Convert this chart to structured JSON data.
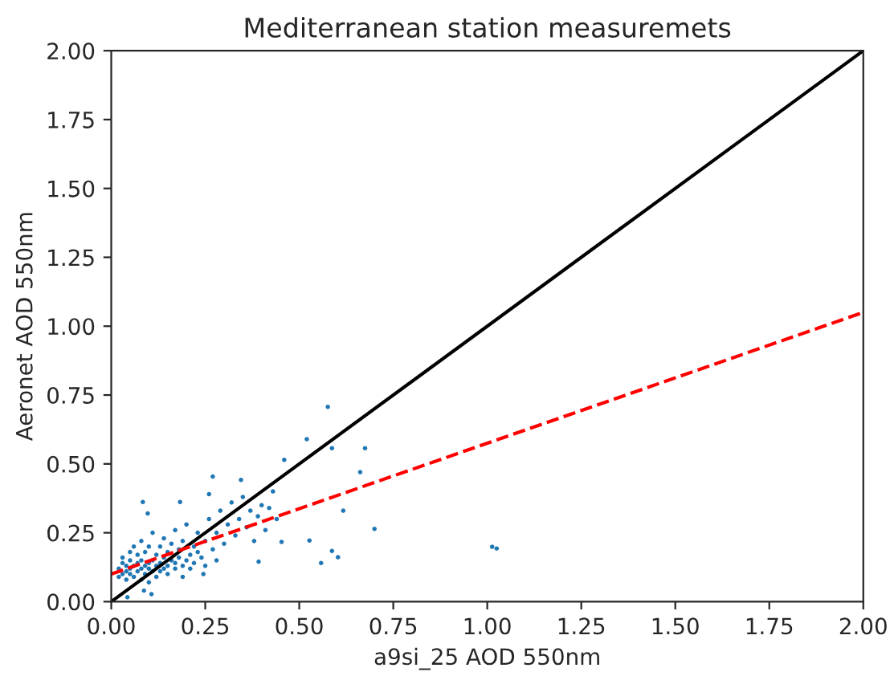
{
  "chart_data": {
    "type": "scatter",
    "title": "Mediterranean station measuremets",
    "xlabel": "a9si_25 AOD 550nm",
    "ylabel": "Aeronet AOD 550nm",
    "xlim": [
      0,
      2
    ],
    "ylim": [
      0,
      2
    ],
    "xticks": [
      {
        "value": 0,
        "label": "0.00"
      },
      {
        "value": 0.25,
        "label": "0.25"
      },
      {
        "value": 0.5,
        "label": "0.50"
      },
      {
        "value": 0.75,
        "label": "0.75"
      },
      {
        "value": 1,
        "label": "1.00"
      },
      {
        "value": 1.25,
        "label": "1.25"
      },
      {
        "value": 1.5,
        "label": "1.50"
      },
      {
        "value": 1.75,
        "label": "1.75"
      },
      {
        "value": 2,
        "label": "2.00"
      }
    ],
    "yticks": [
      {
        "value": 0,
        "label": "0.00"
      },
      {
        "value": 0.25,
        "label": "0.25"
      },
      {
        "value": 0.5,
        "label": "0.50"
      },
      {
        "value": 0.75,
        "label": "0.75"
      },
      {
        "value": 1,
        "label": "1.00"
      },
      {
        "value": 1.25,
        "label": "1.25"
      },
      {
        "value": 1.5,
        "label": "1.50"
      },
      {
        "value": 1.75,
        "label": "1.75"
      },
      {
        "value": 2,
        "label": "2.00"
      }
    ],
    "grid": false,
    "series": [
      {
        "color": "#1f77b4",
        "marker": "circle",
        "x": [
          0.02,
          0.02,
          0.03,
          0.03,
          0.03,
          0.04,
          0.04,
          0.04,
          0.05,
          0.05,
          0.05,
          0.05,
          0.06,
          0.06,
          0.06,
          0.07,
          0.07,
          0.07,
          0.08,
          0.08,
          0.08,
          0.08,
          0.09,
          0.09,
          0.09,
          0.1,
          0.1,
          0.1,
          0.1,
          0.11,
          0.11,
          0.11,
          0.12,
          0.12,
          0.12,
          0.13,
          0.13,
          0.13,
          0.14,
          0.14,
          0.14,
          0.15,
          0.15,
          0.15,
          0.16,
          0.16,
          0.17,
          0.17,
          0.17,
          0.18,
          0.18,
          0.19,
          0.19,
          0.2,
          0.2,
          0.21,
          0.21,
          0.22,
          0.22,
          0.23,
          0.23,
          0.24,
          0.25,
          0.25,
          0.26,
          0.27,
          0.28,
          0.28,
          0.29,
          0.3,
          0.31,
          0.32,
          0.33,
          0.34,
          0.35,
          0.36,
          0.37,
          0.38,
          0.39,
          0.4,
          0.41,
          0.42,
          0.43,
          0.44,
          0.576,
          0.52,
          0.587,
          0.675,
          0.46,
          0.27,
          0.345,
          0.662,
          0.617,
          0.7,
          0.527,
          0.587,
          0.603,
          0.558,
          0.453,
          0.392,
          1.013,
          1.025,
          0.084,
          0.097,
          0.183,
          0.26,
          0.043,
          0.107,
          0.087,
          0.19,
          0.245
        ],
        "values": [
          0.12,
          0.09,
          0.14,
          0.1,
          0.16,
          0.11,
          0.13,
          0.08,
          0.15,
          0.12,
          0.18,
          0.1,
          0.13,
          0.2,
          0.09,
          0.14,
          0.11,
          0.17,
          0.12,
          0.15,
          0.22,
          0.08,
          0.13,
          0.18,
          0.1,
          0.14,
          0.12,
          0.2,
          0.07,
          0.15,
          0.11,
          0.25,
          0.13,
          0.17,
          0.09,
          0.14,
          0.2,
          0.11,
          0.16,
          0.12,
          0.23,
          0.13,
          0.18,
          0.1,
          0.15,
          0.21,
          0.14,
          0.12,
          0.26,
          0.16,
          0.19,
          0.13,
          0.22,
          0.15,
          0.28,
          0.17,
          0.12,
          0.2,
          0.14,
          0.18,
          0.25,
          0.16,
          0.22,
          0.13,
          0.3,
          0.19,
          0.25,
          0.15,
          0.33,
          0.21,
          0.28,
          0.36,
          0.24,
          0.3,
          0.38,
          0.27,
          0.33,
          0.22,
          0.31,
          0.35,
          0.26,
          0.34,
          0.4,
          0.3,
          0.707,
          0.59,
          0.557,
          0.557,
          0.515,
          0.454,
          0.442,
          0.47,
          0.33,
          0.264,
          0.222,
          0.184,
          0.161,
          0.14,
          0.217,
          0.145,
          0.199,
          0.193,
          0.362,
          0.32,
          0.362,
          0.39,
          0.016,
          0.027,
          0.04,
          0.09,
          0.1
        ]
      },
      {
        "type": "line",
        "color": "#000000",
        "line_style": "solid",
        "x": [
          0,
          2
        ],
        "values": [
          0,
          2
        ]
      },
      {
        "type": "line",
        "color": "#ff0000",
        "line_style": "dashed",
        "x": [
          0,
          2
        ],
        "values": [
          0.1,
          1.05
        ]
      }
    ]
  }
}
